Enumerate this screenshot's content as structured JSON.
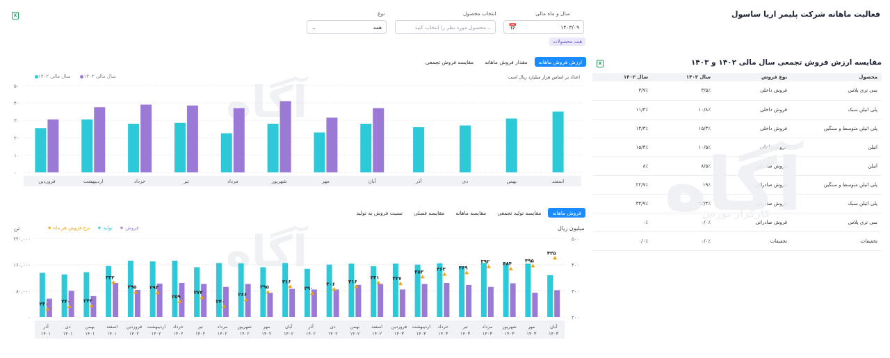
{
  "page": {
    "title": "فعالیت ماهانه شرکت پلیمر اریا ساسول"
  },
  "filters": {
    "period_label": "سال و ماه مالی",
    "period_value": "۱۴۰۳/۰۹",
    "product_label": "انتخاب محصول",
    "product_placeholder": "محصول مورد نظر را انتخاب کنید...",
    "type_label": "نوع",
    "type_value": "همه",
    "chip_all_products": "همه محصولات"
  },
  "watermark": {
    "brand": "آگاه",
    "tagline": "کارگزار بورس"
  },
  "top_chart": {
    "tabs": [
      "ارزش فروش ماهانه",
      "مقدار فروش ماهانه",
      "مقایسه فروش تجمعی"
    ],
    "active_tab": 0,
    "note": "اعداد بر اساس هزار میلیارد ریال است",
    "legend": [
      "سال مالی ۱۴۰۳",
      "سال مالی ۱۴۰۲"
    ],
    "y_ticks": [
      "۵۰",
      "۴۰",
      "۳۰",
      "۲۰",
      "۱۰",
      "۰"
    ]
  },
  "bottom_chart": {
    "tabs": [
      "فروش ماهانه",
      "مقایسه تولید تجمعی",
      "مقایسه ماهانه",
      "مقایسه فصلی",
      "نسبت فروش به تولید"
    ],
    "active_tab": 0,
    "left_unit": "تن",
    "right_unit": "میلیون ریال",
    "legend": [
      "فروش",
      "تولید",
      "نرخ فروش هر ماه"
    ],
    "left_ticks": [
      "۲۴۰,۰۰۰",
      "۱۶۰,۰۰۰",
      "۸۰,۰۰۰",
      "۰"
    ],
    "right_ticks": [
      "۵۰۰",
      "۴۰۰",
      "۳۰۰",
      "۲۰۰"
    ]
  },
  "right_table": {
    "title": "مقایسه ارزش فروش تجمعی سال مالی ۱۴۰۲ و ۱۴۰۳",
    "headers": [
      "محصول",
      "نوع فروش",
      "سال ۱۴۰۳",
      "سال ۱۴۰۲"
    ],
    "rows": [
      [
        "سی تری پلاس",
        "فروش داخلی",
        "۳/۵٪",
        "۳/۷٪"
      ],
      [
        "پلی اتیلن سبک",
        "فروش داخلی",
        "۱۰/۸٪",
        "۱۱/۳٪"
      ],
      [
        "پلی اتیلن متوسط و سنگین",
        "فروش داخلی",
        "۱۵/۳٪",
        "۱۴/۳٪"
      ],
      [
        "اتیلن",
        "فروش داخلی",
        "۱۰/۵٪",
        "۱۵/۳٪"
      ],
      [
        "اتیلن",
        "فروش صادراتی",
        "۸/۵٪",
        "۸٪"
      ],
      [
        "پلی اتیلن متوسط و سنگین",
        "فروش صادراتی",
        "۱۹٪",
        "۲۲/۷٪"
      ],
      [
        "پلی اتیلن سبک",
        "فروش صادراتی",
        "۳۲/۴٪",
        "۳۴/۹٪"
      ],
      [
        "سی تری پلاس",
        "فروش صادراتی",
        "۰/۰٪",
        "۰٪"
      ],
      [
        "تخفیفات",
        "تخفیفات",
        "۰/۰٪",
        "۰/۰٪"
      ]
    ]
  },
  "colors": {
    "teal": "#2ec9d9",
    "purple": "#9b7ad6",
    "orange": "#f4a10c",
    "accent": "#1a8cff"
  },
  "chart_data": [
    {
      "type": "bar",
      "categories": [
        "اسفند",
        "بهمن",
        "دی",
        "آذر",
        "آبان",
        "مهر",
        "شهریور",
        "مرداد",
        "تیر",
        "خرداد",
        "اردیبهشت",
        "فروردین"
      ],
      "series": [
        {
          "name": "سال مالی ۱۴۰۲",
          "values": [
            35,
            31,
            27,
            26,
            28,
            23,
            28,
            22.5,
            28.5,
            28,
            30.5,
            25.5
          ]
        },
        {
          "name": "سال مالی ۱۴۰۳",
          "values": [
            null,
            null,
            null,
            null,
            37,
            31.5,
            41,
            37,
            38.5,
            39,
            37.5,
            30.5
          ]
        }
      ],
      "ylim": [
        0,
        50
      ]
    },
    {
      "type": "bar",
      "categories": [
        "آذر ۱۴۰۱",
        "دی ۱۴۰۱",
        "بهمن ۱۴۰۱",
        "اسفند ۱۴۰۱",
        "فروردین ۱۴۰۲",
        "اردیبهشت ۱۴۰۲",
        "خرداد ۱۴۰۲",
        "تیر ۱۴۰۲",
        "مرداد ۱۴۰۲",
        "شهریور ۱۴۰۲",
        "مهر ۱۴۰۲",
        "آبان ۱۴۰۲",
        "آذر ۱۴۰۲",
        "دی ۱۴۰۲",
        "بهمن ۱۴۰۲",
        "اسفند ۱۴۰۲",
        "فروردین ۱۴۰۳",
        "اردیبهشت ۱۴۰۳",
        "خرداد ۱۴۰۳",
        "تیر ۱۴۰۳",
        "مرداد ۱۴۰۳",
        "شهریور ۱۴۰۳",
        "مهر ۱۴۰۳",
        "آبان ۱۴۰۳"
      ],
      "series": [
        {
          "name": "تولید",
          "values": [
            135000,
            130000,
            137000,
            156000,
            172000,
            170000,
            172000,
            152000,
            165000,
            164000,
            152000,
            165000,
            147000,
            160000,
            163000,
            155000,
            163000,
            160000,
            164000,
            155000,
            165000,
            165000,
            163000,
            128000
          ]
        },
        {
          "name": "فروش",
          "values": [
            56000,
            80000,
            64000,
            104000,
            83000,
            102000,
            104000,
            101000,
            92000,
            101000,
            74000,
            86000,
            84000,
            84000,
            98000,
            101000,
            84000,
            101000,
            104000,
            98000,
            92000,
            103000,
            74000,
            82000
          ]
        },
        {
          "name": "نرخ فروش هر ماه",
          "values": [
            230,
            240,
            242,
            332,
            295,
            293,
            259,
            274,
            240,
            266,
            295,
            316,
            290,
            306,
            316,
            331,
            327,
            353,
            363,
            369,
            392,
            384,
            395,
            425
          ]
        }
      ],
      "ylim_left": [
        0,
        240000
      ],
      "ylim_right": [
        200,
        500
      ]
    }
  ]
}
